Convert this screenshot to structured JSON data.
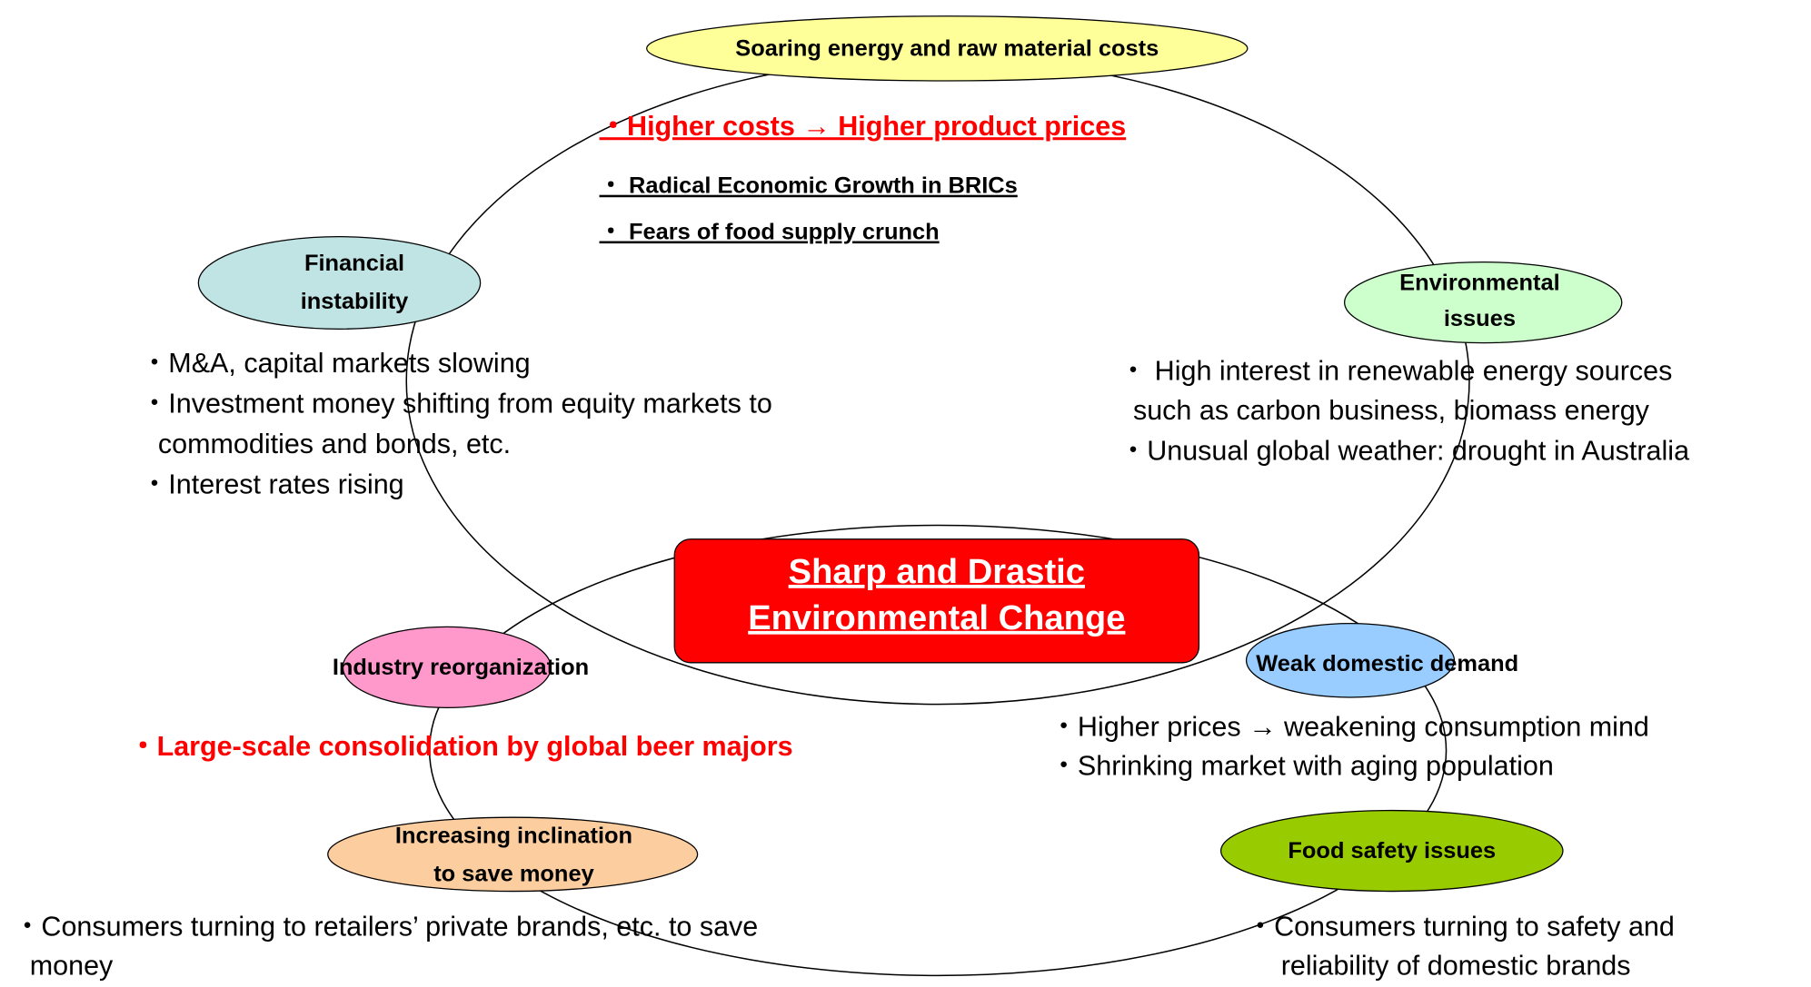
{
  "center": [
    "Sharp and Drastic",
    "Environmental Change"
  ],
  "nodes": [
    {
      "label": [
        "Soaring energy and raw material costs"
      ],
      "bullets": [
        "・Higher costs → Higher product prices",
        "・ Radical Economic Growth in BRICs",
        "・ Fears of food supply crunch"
      ]
    },
    {
      "label": [
        "Financial",
        "instability"
      ],
      "bullets": [
        "・M&A, capital markets slowing",
        "・Investment money shifting from equity markets to",
        "commodities and bonds, etc.",
        "・Interest rates rising"
      ]
    },
    {
      "label": [
        "Environmental",
        "issues"
      ],
      "bullets": [
        "・ High interest in renewable energy sources",
        "such as carbon business, biomass energy",
        "・Unusual global weather: drought in Australia"
      ]
    },
    {
      "label": [
        "Industry reorganization"
      ],
      "bullets": [
        "・Large-scale consolidation by global beer majors"
      ]
    },
    {
      "label": [
        "Weak domestic demand"
      ],
      "bullets": [
        "・Higher prices → weakening consumption mind",
        "・Shrinking market with aging population"
      ]
    },
    {
      "label": [
        "Increasing inclination",
        "to save money"
      ],
      "bullets": [
        "・Consumers turning to retailers’ private brands, etc. to save",
        "money"
      ]
    },
    {
      "label": [
        "Food safety issues"
      ],
      "bullets": [
        "・Consumers turning to safety and",
        "reliability of domestic brands"
      ]
    }
  ]
}
